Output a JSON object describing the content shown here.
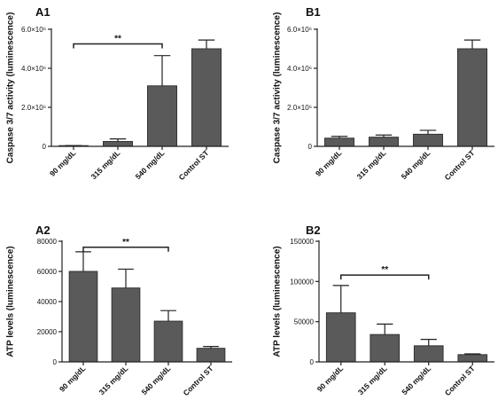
{
  "chart_data": [
    {
      "panel": "A1",
      "type": "bar",
      "ylabel": "Caspase 3/7 activity (luminescence)",
      "categories": [
        "90 mg/dL",
        "315 mg/dL",
        "540 mg/dL",
        "Control ST"
      ],
      "values": [
        30000,
        250000,
        3100000,
        5000000
      ],
      "errors": [
        10000,
        130000,
        1550000,
        450000
      ],
      "ylim": [
        0,
        6000000
      ],
      "yticks": [
        0,
        2000000,
        4000000,
        6000000
      ],
      "yticklabels": [
        "0",
        "2.0×10⁶",
        "4.0×10⁶",
        "6.0×10⁶"
      ],
      "significance": {
        "from": 0,
        "to": 2,
        "y": 5250000,
        "label": "**"
      }
    },
    {
      "panel": "B1",
      "type": "bar",
      "ylabel": "Caspase 3/7 activity (luminescence)",
      "categories": [
        "90 mg/dL",
        "315 mg/dL",
        "540 mg/dL",
        "Control ST"
      ],
      "values": [
        420000,
        470000,
        620000,
        5000000
      ],
      "errors": [
        90000,
        110000,
        200000,
        450000
      ],
      "ylim": [
        0,
        6000000
      ],
      "yticks": [
        0,
        2000000,
        4000000,
        6000000
      ],
      "yticklabels": [
        "0",
        "2.0×10⁶",
        "4.0×10⁶",
        "6.0×10⁶"
      ]
    },
    {
      "panel": "A2",
      "type": "bar",
      "ylabel": "ATP levels (luminescence)",
      "categories": [
        "90 mg/dL",
        "315 mg/dL",
        "540 mg/dL",
        "Control ST"
      ],
      "values": [
        60000,
        49000,
        27000,
        9000
      ],
      "errors": [
        13000,
        12500,
        7000,
        1200
      ],
      "ylim": [
        0,
        80000
      ],
      "yticks": [
        0,
        20000,
        40000,
        60000,
        80000
      ],
      "yticklabels": [
        "0",
        "20000",
        "40000",
        "60000",
        "80000"
      ],
      "significance": {
        "from": 0,
        "to": 2,
        "y": 76000,
        "label": "**"
      }
    },
    {
      "panel": "B2",
      "type": "bar",
      "ylabel": "ATP levels (luminescence)",
      "categories": [
        "90 mg/dL",
        "315 mg/dL",
        "540 mg/dL",
        "Control ST"
      ],
      "values": [
        61000,
        34000,
        20000,
        9000
      ],
      "errors": [
        34000,
        13000,
        8000,
        1000
      ],
      "ylim": [
        0,
        150000
      ],
      "yticks": [
        0,
        50000,
        100000,
        150000
      ],
      "yticklabels": [
        "0",
        "50000",
        "100000",
        "150000"
      ],
      "significance": {
        "from": 0,
        "to": 2,
        "y": 108000,
        "label": "**"
      }
    }
  ]
}
